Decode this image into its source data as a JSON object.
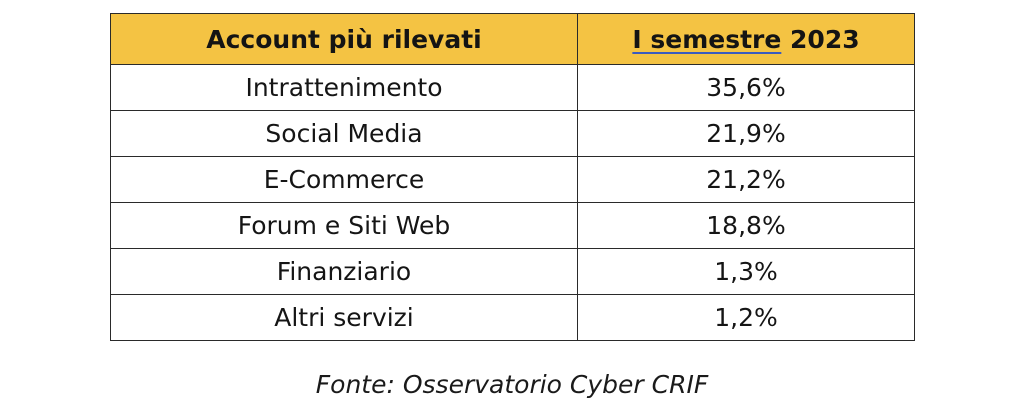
{
  "table": {
    "headers": {
      "account": "Account più rilevati",
      "period_underlined": "I semestre",
      "period_rest": " 2023"
    },
    "rows": [
      {
        "account": "Intrattenimento",
        "value": "35,6%"
      },
      {
        "account": "Social Media",
        "value": "21,9%"
      },
      {
        "account": "E-Commerce",
        "value": "21,2%"
      },
      {
        "account": "Forum e Siti Web",
        "value": "18,8%"
      },
      {
        "account": "Finanziario",
        "value": "1,3%"
      },
      {
        "account": "Altri servizi",
        "value": "1,2%"
      }
    ]
  },
  "source": "Fonte: Osservatorio Cyber CRIF",
  "colors": {
    "header_background": "#f4c343",
    "border": "#2a2a2a",
    "underline": "#3b5bbf"
  }
}
